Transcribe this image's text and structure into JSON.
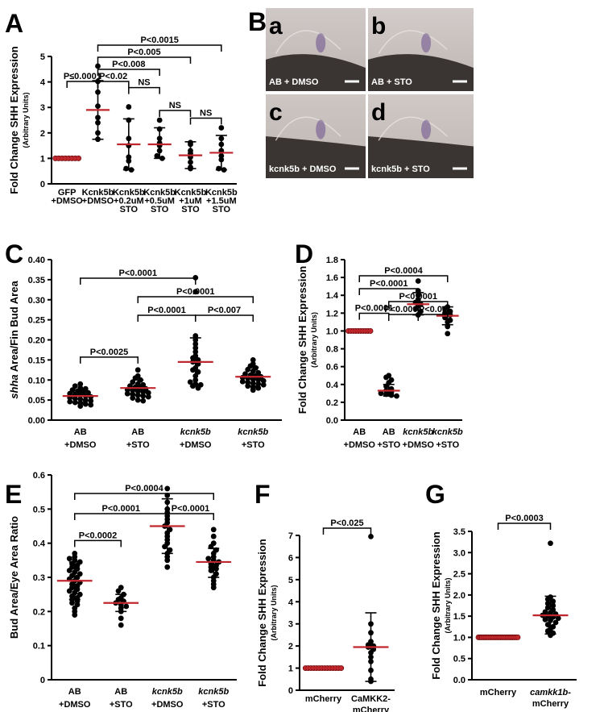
{
  "panels": {
    "a": "A",
    "b": "B",
    "c": "C",
    "d": "D",
    "e": "E",
    "f": "F",
    "g": "G"
  },
  "micrographs": [
    {
      "letter": "a",
      "caption": "AB + DMSO",
      "tone": "#cfc8c6"
    },
    {
      "letter": "b",
      "caption": "AB + STO",
      "tone": "#d3ccca"
    },
    {
      "letter": "c",
      "caption": "kcnk5b + DMSO",
      "tone": "#cdc6c3"
    },
    {
      "letter": "d",
      "caption": "kcnk5b + STO",
      "tone": "#d0c9c6"
    }
  ],
  "colors": {
    "dots": "#000000",
    "mean_line": "#c0272d",
    "control_dots": "#c0272d",
    "scale_bar": "#ffffff"
  },
  "chart_data": [
    {
      "id": "A",
      "type": "scatter",
      "ylabel": "Fold Change SHH Expression",
      "ylabel_sub": "(Arbitrary Units)",
      "ylim": [
        0,
        5
      ],
      "yticks": [
        "0",
        "1",
        "2",
        "3",
        "4",
        "5"
      ],
      "categories": [
        [
          "GFP",
          "+DMSO"
        ],
        [
          "Kcnk5b",
          "+DMSO"
        ],
        [
          "Kcnk5b",
          "+0.2uM",
          "STO"
        ],
        [
          "Kcnk5b",
          "+0.5uM",
          "STO"
        ],
        [
          "Kcnk5b",
          "+1uM",
          "STO"
        ],
        [
          "Kcnk5b",
          "+1.5uM",
          "STO"
        ]
      ],
      "groups": [
        {
          "mean": 1.0,
          "sd_low": 1.0,
          "sd_high": 1.0,
          "control": true,
          "points": [
            1,
            1,
            1,
            1,
            1,
            1,
            1,
            1
          ]
        },
        {
          "mean": 2.9,
          "sd_low": 1.75,
          "sd_high": 4.05,
          "control": false,
          "points": [
            4.62,
            4.02,
            3.6,
            3.05,
            2.6,
            2.4,
            2.0,
            1.75
          ]
        },
        {
          "mean": 1.55,
          "sd_low": 0.55,
          "sd_high": 2.55,
          "control": false,
          "points": [
            3.02,
            2.5,
            1.78,
            1.5,
            1.05,
            0.9,
            0.6,
            0.55
          ]
        },
        {
          "mean": 1.55,
          "sd_low": 1.0,
          "sd_high": 2.2,
          "control": false,
          "points": [
            2.5,
            2.15,
            1.78,
            1.6,
            1.5,
            1.3,
            1.1,
            1.0
          ]
        },
        {
          "mean": 1.12,
          "sd_low": 0.6,
          "sd_high": 1.65,
          "control": false,
          "points": [
            1.62,
            1.55,
            1.3,
            1.2,
            1.05,
            0.85,
            0.65,
            0.6
          ]
        },
        {
          "mean": 1.22,
          "sd_low": 0.55,
          "sd_high": 1.9,
          "control": false,
          "points": [
            2.2,
            1.78,
            1.55,
            1.3,
            1.1,
            0.95,
            0.6,
            0.55
          ]
        }
      ],
      "comparisons": [
        {
          "from": 1,
          "to": 5,
          "label": "P<0.0015",
          "level": 4
        },
        {
          "from": 1,
          "to": 4,
          "label": "P<0.005",
          "level": 3
        },
        {
          "from": 1,
          "to": 3,
          "label": "P<0.008",
          "level": 2
        },
        {
          "from": 0,
          "to": 1,
          "label": "P≤0.0001",
          "level": 1
        },
        {
          "from": 1,
          "to": 2,
          "label": "P<0.02",
          "level": 1
        },
        {
          "from": 2,
          "to": 3,
          "label": "NS",
          "level": 0
        },
        {
          "from": 3,
          "to": 4,
          "label": "NS",
          "level": -1
        },
        {
          "from": 4,
          "to": 5,
          "label": "NS",
          "level": -1
        }
      ]
    },
    {
      "id": "C",
      "type": "scatter",
      "ylabel": "shha Area/Fin Bud Area",
      "ylim": [
        0,
        0.4
      ],
      "yticks": [
        "0.00",
        "0.05",
        "0.10",
        "0.15",
        "0.20",
        "0.25",
        "0.30",
        "0.35",
        "0.40"
      ],
      "categories": [
        [
          "AB",
          "+DMSO"
        ],
        [
          "AB",
          "+STO"
        ],
        [
          "kcnk5b",
          "+DMSO"
        ],
        [
          "kcnk5b",
          "+STO"
        ]
      ],
      "groups": [
        {
          "mean": 0.06,
          "sd_low": 0.045,
          "sd_high": 0.076,
          "control": false,
          "points": [
            0.09,
            0.085,
            0.08,
            0.078,
            0.075,
            0.072,
            0.07,
            0.068,
            0.066,
            0.064,
            0.062,
            0.06,
            0.058,
            0.056,
            0.054,
            0.052,
            0.05,
            0.048,
            0.046,
            0.044,
            0.042,
            0.04,
            0.038,
            0.035
          ]
        },
        {
          "mean": 0.08,
          "sd_low": 0.062,
          "sd_high": 0.1,
          "control": false,
          "points": [
            0.125,
            0.11,
            0.105,
            0.1,
            0.095,
            0.09,
            0.088,
            0.085,
            0.082,
            0.08,
            0.078,
            0.076,
            0.074,
            0.072,
            0.07,
            0.068,
            0.066,
            0.064,
            0.062,
            0.06,
            0.058,
            0.055,
            0.05,
            0.048
          ]
        },
        {
          "mean": 0.145,
          "sd_low": 0.085,
          "sd_high": 0.205,
          "control": false,
          "points": [
            0.355,
            0.32,
            0.21,
            0.2,
            0.19,
            0.18,
            0.17,
            0.16,
            0.155,
            0.15,
            0.145,
            0.14,
            0.13,
            0.125,
            0.12,
            0.11,
            0.1,
            0.095,
            0.09,
            0.088,
            0.085,
            0.08
          ]
        },
        {
          "mean": 0.108,
          "sd_low": 0.085,
          "sd_high": 0.132,
          "control": false,
          "points": [
            0.15,
            0.14,
            0.135,
            0.13,
            0.126,
            0.122,
            0.118,
            0.115,
            0.112,
            0.11,
            0.108,
            0.106,
            0.104,
            0.102,
            0.1,
            0.098,
            0.096,
            0.094,
            0.092,
            0.09,
            0.088,
            0.085,
            0.082,
            0.08,
            0.075
          ]
        }
      ],
      "comparisons": [
        {
          "from": 0,
          "to": 2,
          "label": "P<0.0001",
          "level": 3
        },
        {
          "from": 1,
          "to": 3,
          "label": "P<0.0001",
          "level": 2
        },
        {
          "from": 1,
          "to": 2,
          "label": "P<0.0001",
          "level": 1
        },
        {
          "from": 2,
          "to": 3,
          "label": "P<0.007",
          "level": 1
        },
        {
          "from": 0,
          "to": 1,
          "label": "P<0.0025",
          "level": 0
        }
      ]
    },
    {
      "id": "D",
      "type": "scatter",
      "ylabel": "Fold Change SHH Expression",
      "ylabel_sub": "(Arbitrary Units)",
      "ylim": [
        0,
        1.8
      ],
      "yticks": [
        "0.0",
        "0.2",
        "0.4",
        "0.6",
        "0.8",
        "1.0",
        "1.2",
        "1.4",
        "1.6",
        "1.8"
      ],
      "categories": [
        [
          "AB",
          "+DMSO"
        ],
        [
          "AB",
          "+STO"
        ],
        [
          "kcnk5b",
          "+DMSO"
        ],
        [
          "kcnk5b",
          "+STO"
        ]
      ],
      "groups": [
        {
          "mean": 1.0,
          "sd_low": 1.0,
          "sd_high": 1.0,
          "control": true,
          "points": [
            1,
            1,
            1,
            1,
            1,
            1,
            1,
            1,
            1,
            1
          ]
        },
        {
          "mean": 0.33,
          "sd_low": 0.27,
          "sd_high": 0.4,
          "control": false,
          "points": [
            0.5,
            0.48,
            0.45,
            0.42,
            0.38,
            0.35,
            0.33,
            0.31,
            0.3,
            0.29,
            0.28,
            0.27
          ]
        },
        {
          "mean": 1.3,
          "sd_low": 1.18,
          "sd_high": 1.43,
          "control": false,
          "points": [
            1.56,
            1.45,
            1.4,
            1.35,
            1.32,
            1.3,
            1.28,
            1.25,
            1.22,
            1.18
          ]
        },
        {
          "mean": 1.17,
          "sd_low": 1.07,
          "sd_high": 1.27,
          "control": false,
          "points": [
            1.27,
            1.25,
            1.22,
            1.2,
            1.18,
            1.15,
            1.12,
            1.1,
            1.05,
            0.97
          ]
        }
      ],
      "comparisons": [
        {
          "from": 0,
          "to": 3,
          "label": "P<0.0004",
          "level": 4
        },
        {
          "from": 0,
          "to": 2,
          "label": "P<0.0001",
          "level": 3
        },
        {
          "from": 1,
          "to": 3,
          "label": "P<0.0001",
          "level": 2
        },
        {
          "from": 1,
          "to": 2,
          "label": "P<0.0001",
          "level": 1
        },
        {
          "from": 2,
          "to": 3,
          "label": "P<0.03",
          "level": 1
        },
        {
          "from": 0,
          "to": 1,
          "label": "P<0.0001",
          "level": 0
        }
      ]
    },
    {
      "id": "E",
      "type": "scatter",
      "ylabel": "Bud Area/Eye Area Ratio",
      "ylim": [
        0,
        0.6
      ],
      "yticks": [
        "0",
        "0.1",
        "0.2",
        "0.3",
        "0.4",
        "0.5",
        "0.6"
      ],
      "categories": [
        [
          "AB",
          "+DMSO"
        ],
        [
          "AB",
          "+STO"
        ],
        [
          "kcnk5b",
          "+DMSO"
        ],
        [
          "kcnk5b",
          "+STO"
        ]
      ],
      "groups": [
        {
          "mean": 0.29,
          "sd_low": 0.235,
          "sd_high": 0.345,
          "control": false,
          "points": [
            0.37,
            0.36,
            0.355,
            0.35,
            0.345,
            0.34,
            0.335,
            0.33,
            0.325,
            0.32,
            0.315,
            0.31,
            0.305,
            0.3,
            0.295,
            0.29,
            0.285,
            0.28,
            0.275,
            0.27,
            0.265,
            0.26,
            0.255,
            0.25,
            0.245,
            0.24,
            0.235,
            0.23,
            0.225,
            0.22,
            0.21,
            0.2,
            0.19
          ]
        },
        {
          "mean": 0.225,
          "sd_low": 0.2,
          "sd_high": 0.25,
          "control": false,
          "points": [
            0.27,
            0.26,
            0.25,
            0.24,
            0.235,
            0.23,
            0.225,
            0.22,
            0.215,
            0.21,
            0.2,
            0.18,
            0.16
          ]
        },
        {
          "mean": 0.45,
          "sd_low": 0.37,
          "sd_high": 0.53,
          "control": false,
          "points": [
            0.56,
            0.54,
            0.52,
            0.5,
            0.49,
            0.48,
            0.47,
            0.46,
            0.45,
            0.44,
            0.43,
            0.42,
            0.41,
            0.4,
            0.39,
            0.38,
            0.37,
            0.36,
            0.35,
            0.33
          ]
        },
        {
          "mean": 0.345,
          "sd_low": 0.3,
          "sd_high": 0.385,
          "control": false,
          "points": [
            0.44,
            0.42,
            0.4,
            0.39,
            0.38,
            0.37,
            0.36,
            0.355,
            0.35,
            0.345,
            0.34,
            0.335,
            0.33,
            0.325,
            0.32,
            0.31,
            0.3,
            0.29,
            0.28,
            0.27
          ]
        }
      ],
      "comparisons": [
        {
          "from": 0,
          "to": 3,
          "label": "P<0.0004",
          "level": 3
        },
        {
          "from": 0,
          "to": 2,
          "label": "P<0.0001",
          "level": 2
        },
        {
          "from": 2,
          "to": 3,
          "label": "P<0.0001",
          "level": 2
        },
        {
          "from": 0,
          "to": 1,
          "label": "P<0.0002",
          "level": 0
        }
      ]
    },
    {
      "id": "F",
      "type": "scatter",
      "ylabel": "Fold Change SHH Expression",
      "ylabel_sub": "(Arbitrary Units)",
      "ylim": [
        0,
        7
      ],
      "yticks": [
        "0",
        "1",
        "2",
        "3",
        "4",
        "5",
        "6",
        "7"
      ],
      "categories": [
        [
          "mCherry"
        ],
        [
          "CaMKK2-",
          "mCherry"
        ]
      ],
      "groups": [
        {
          "mean": 1.0,
          "sd_low": 1.0,
          "sd_high": 1.0,
          "control": true,
          "points": [
            1,
            1,
            1,
            1,
            1,
            1,
            1,
            1,
            1,
            1,
            1,
            1,
            1,
            1
          ]
        },
        {
          "mean": 1.95,
          "sd_low": 0.4,
          "sd_high": 3.5,
          "control": false,
          "points": [
            6.95,
            3.0,
            2.6,
            2.2,
            2.05,
            2.0,
            1.95,
            1.85,
            1.7,
            1.5,
            1.3,
            0.9,
            0.5,
            0.4
          ]
        }
      ],
      "comparisons": [
        {
          "from": 0,
          "to": 1,
          "label": "P<0.025",
          "level": 0
        }
      ]
    },
    {
      "id": "G",
      "type": "scatter",
      "ylabel": "Fold Change SHH Expression",
      "ylabel_sub": "(Arbitrary Units)",
      "ylim": [
        0,
        3.5
      ],
      "yticks": [
        "0.0",
        "0.5",
        "1.0",
        "1.5",
        "2.0",
        "2.5",
        "3.0",
        "3.5"
      ],
      "categories": [
        [
          "mCherry"
        ],
        [
          "camkk1b-",
          "mCherry"
        ]
      ],
      "groups": [
        {
          "mean": 1.0,
          "sd_low": 1.0,
          "sd_high": 1.0,
          "control": true,
          "points": [
            1,
            1,
            1,
            1,
            1,
            1,
            1,
            1,
            1,
            1,
            1,
            1,
            1,
            1,
            1,
            1,
            1,
            1,
            1,
            1,
            1,
            1,
            1,
            1
          ]
        },
        {
          "mean": 1.52,
          "sd_low": 1.08,
          "sd_high": 1.97,
          "control": false,
          "points": [
            3.22,
            1.95,
            1.9,
            1.85,
            1.8,
            1.75,
            1.7,
            1.65,
            1.6,
            1.58,
            1.55,
            1.52,
            1.5,
            1.48,
            1.45,
            1.42,
            1.4,
            1.35,
            1.3,
            1.25,
            1.2,
            1.15,
            1.1,
            1.05
          ]
        }
      ],
      "comparisons": [
        {
          "from": 0,
          "to": 1,
          "label": "P<0.0003",
          "level": 0
        }
      ]
    }
  ]
}
